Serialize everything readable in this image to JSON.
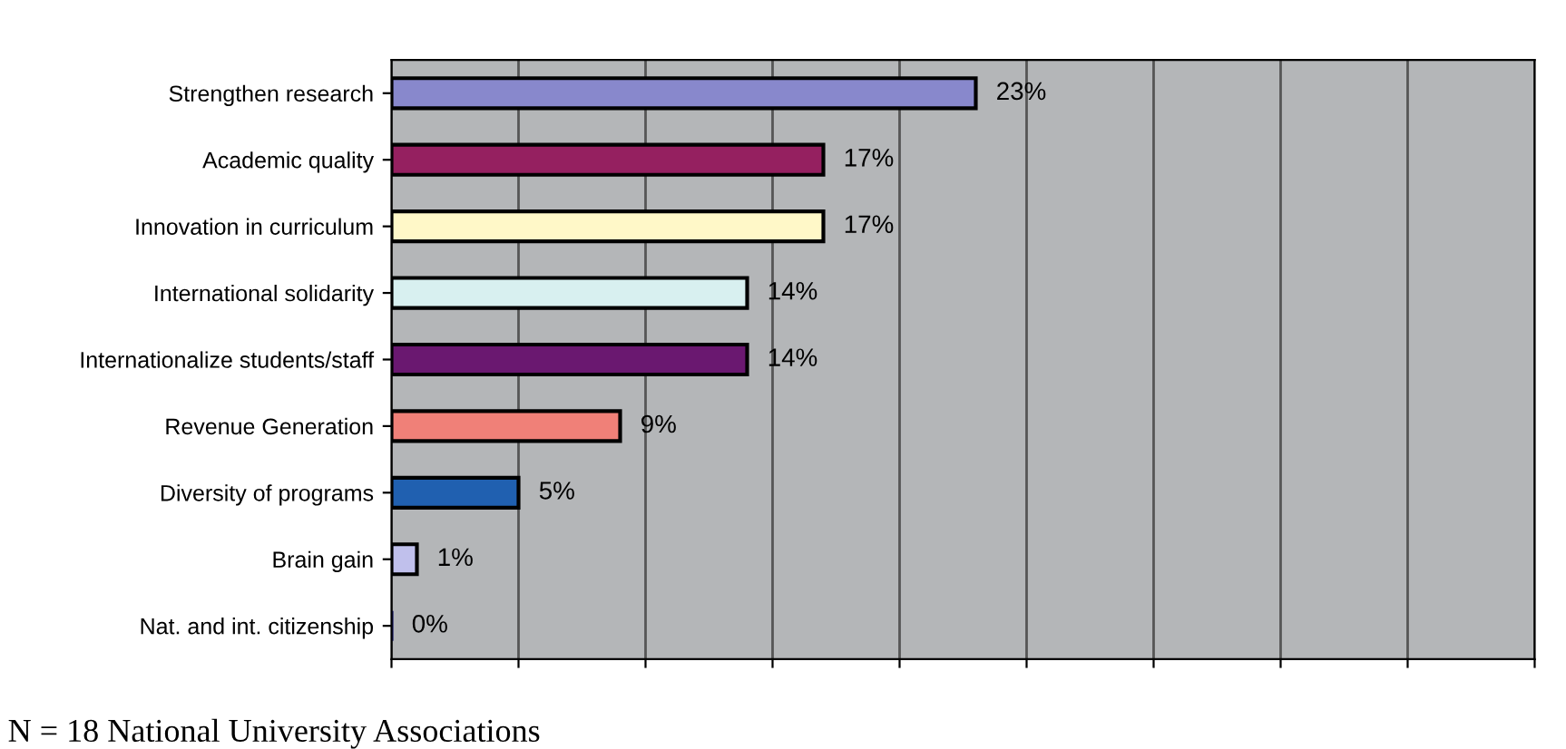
{
  "chart_data": {
    "type": "bar",
    "orientation": "horizontal",
    "categories": [
      "Strengthen research",
      "Academic quality",
      "Innovation in curriculum",
      "International solidarity",
      "Internationalize students/staff",
      "Revenue Generation",
      "Diversity of programs",
      "Brain gain",
      "Nat. and int. citizenship"
    ],
    "values": [
      23,
      17,
      17,
      14,
      14,
      9,
      5,
      1,
      0
    ],
    "value_labels": [
      "23%",
      "17%",
      "17%",
      "14%",
      "14%",
      "9%",
      "5%",
      "1%",
      "0%"
    ],
    "colors": [
      "#8888cc",
      "#952060",
      "#fff8c8",
      "#d8f0f0",
      "#6a1870",
      "#f08078",
      "#2060b0",
      "#c0c0ec",
      "#101060"
    ],
    "xlim": [
      0,
      45
    ],
    "xticks": [
      {
        "value": 0,
        "label": null
      },
      {
        "value": 5,
        "label": null
      },
      {
        "value": 10,
        "label": null
      },
      {
        "value": 15,
        "label": null
      },
      {
        "value": 20,
        "label": null
      },
      {
        "value": 25,
        "label": null
      },
      {
        "value": 30,
        "label": null
      },
      {
        "value": 35,
        "label": null
      },
      {
        "value": 40,
        "label": null
      },
      {
        "value": 45,
        "label": null
      }
    ],
    "tick_labels": "y",
    "grid": "x",
    "legend": false,
    "annotations": [
      "N = 18 National University Associations"
    ]
  }
}
